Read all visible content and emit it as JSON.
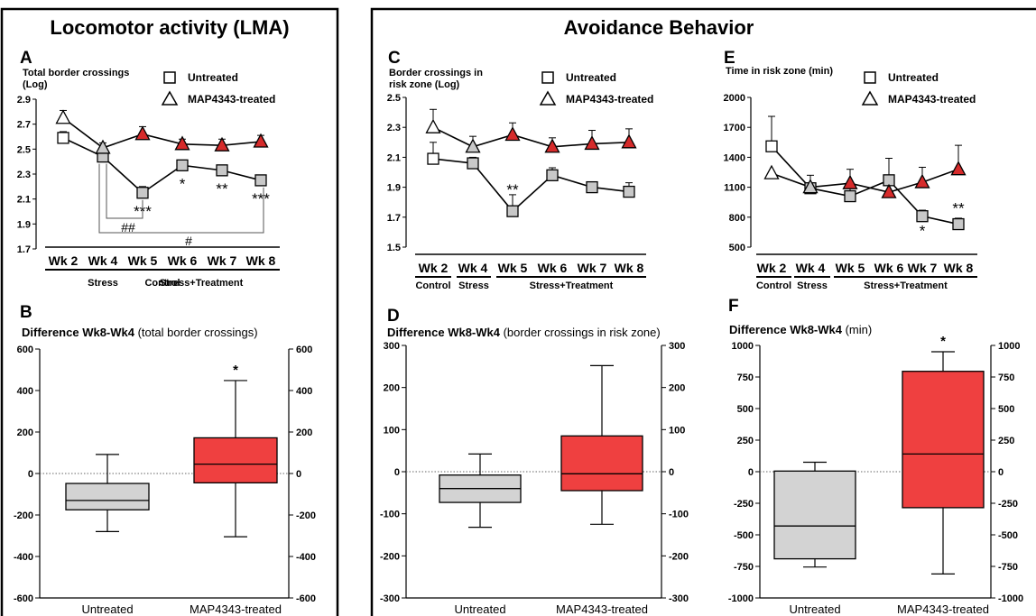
{
  "section_titles": {
    "lma": "Locomotor activity (LMA)",
    "avoid": "Avoidance Behavior"
  },
  "legend": {
    "untreated": "Untreated",
    "treated": "MAP4343-treated"
  },
  "x_axis": {
    "weeks": [
      "Wk 2",
      "Wk 4",
      "Wk 5",
      "Wk 6",
      "Wk 7",
      "Wk 8"
    ],
    "phases": [
      "Control",
      "Stress",
      "Stress+Treatment"
    ]
  },
  "colors": {
    "untreated_marker": "#c8c8c8",
    "treated_marker": "#d62b2b",
    "box_untreated": "#d3d3d3",
    "box_treated": "#ef4040"
  },
  "chart_data": [
    {
      "id": "A",
      "type": "line",
      "panel_label": "A",
      "ylabel": "Total border crossings\n(Log)",
      "ylim": [
        1.7,
        2.9
      ],
      "yticks": [
        "1.7",
        "1.9",
        "2.1",
        "2.3",
        "2.5",
        "2.7",
        "2.9"
      ],
      "categories": [
        "Wk 2",
        "Wk 4",
        "Wk 5",
        "Wk 6",
        "Wk 7",
        "Wk 8"
      ],
      "series": [
        {
          "name": "Untreated",
          "values": [
            2.59,
            2.44,
            2.15,
            2.37,
            2.33,
            2.25
          ],
          "errors": [
            0.05,
            0.03,
            0.05,
            0.03,
            0.02,
            0.02
          ]
        },
        {
          "name": "MAP4343-treated",
          "values": [
            2.75,
            2.51,
            2.62,
            2.54,
            2.53,
            2.56
          ],
          "errors": [
            0.06,
            0.04,
            0.06,
            0.04,
            0.05,
            0.05
          ]
        }
      ],
      "annotations": [
        {
          "category": "Wk 5",
          "text": "***"
        },
        {
          "category": "Wk 6",
          "text": "*"
        },
        {
          "category": "Wk 7",
          "text": "**"
        },
        {
          "category": "Wk 8",
          "text": "***"
        }
      ],
      "brackets": [
        {
          "from": "Wk 4",
          "to": "Wk 5",
          "text": "##"
        },
        {
          "from": "Wk 4",
          "to": "Wk 8",
          "text": "#"
        }
      ]
    },
    {
      "id": "C",
      "type": "line",
      "panel_label": "C",
      "ylabel": "Border crossings in\nrisk zone (Log)",
      "ylim": [
        1.5,
        2.5
      ],
      "yticks": [
        "1.5",
        "1.7",
        "1.9",
        "2.1",
        "2.3",
        "2.5"
      ],
      "categories": [
        "Wk 2",
        "Wk 4",
        "Wk 5",
        "Wk 6",
        "Wk 7",
        "Wk 8"
      ],
      "series": [
        {
          "name": "Untreated",
          "values": [
            2.09,
            2.06,
            1.74,
            1.98,
            1.9,
            1.87
          ],
          "errors": [
            0.11,
            0.04,
            0.11,
            0.05,
            0.03,
            0.06
          ]
        },
        {
          "name": "MAP4343-treated",
          "values": [
            2.3,
            2.17,
            2.25,
            2.17,
            2.19,
            2.2
          ],
          "errors": [
            0.12,
            0.07,
            0.08,
            0.06,
            0.09,
            0.09
          ]
        }
      ],
      "annotations": [
        {
          "category": "Wk 5",
          "text": "**"
        }
      ]
    },
    {
      "id": "E",
      "type": "line",
      "panel_label": "E",
      "ylabel": "Time in risk zone (min)",
      "ylim": [
        500,
        2000
      ],
      "yticks": [
        "500",
        "800",
        "1100",
        "1400",
        "1700",
        "2000"
      ],
      "categories": [
        "Wk 2",
        "Wk 4",
        "Wk 5",
        "Wk 6",
        "Wk 7",
        "Wk 8"
      ],
      "series": [
        {
          "name": "Untreated",
          "values": [
            1510,
            1090,
            1010,
            1170,
            810,
            730
          ],
          "errors": [
            300,
            130,
            80,
            220,
            60,
            60
          ]
        },
        {
          "name": "MAP4343-treated",
          "values": [
            1240,
            1100,
            1140,
            1050,
            1150,
            1280
          ],
          "errors": [
            0,
            0,
            140,
            0,
            150,
            240
          ]
        }
      ],
      "annotations": [
        {
          "category": "Wk 7",
          "text": "*",
          "position": "below"
        },
        {
          "category": "Wk 8",
          "text": "**"
        }
      ]
    },
    {
      "id": "B",
      "type": "box",
      "panel_label": "B",
      "title_bold": "Difference Wk8-Wk4",
      "title_rest": " (total border crossings)",
      "ylim": [
        -600,
        600
      ],
      "yticks": [
        "-600",
        "-400",
        "-200",
        "0",
        "200",
        "400",
        "600"
      ],
      "categories": [
        "Untreated",
        "MAP4343-treated"
      ],
      "boxes": [
        {
          "name": "Untreated",
          "min": -280,
          "q1": -175,
          "median": -130,
          "q3": -48,
          "max": 92
        },
        {
          "name": "MAP4343-treated",
          "min": -305,
          "q1": -45,
          "median": 45,
          "q3": 172,
          "max": 448
        }
      ],
      "annotations": [
        {
          "category": "MAP4343-treated",
          "text": "*"
        }
      ]
    },
    {
      "id": "D",
      "type": "box",
      "panel_label": "D",
      "title_bold": "Difference Wk8-Wk4",
      "title_rest": " (border crossings in risk zone)",
      "ylim": [
        -300,
        300
      ],
      "yticks": [
        "-300",
        "-200",
        "-100",
        "0",
        "100",
        "200",
        "300"
      ],
      "categories": [
        "Untreated",
        "MAP4343-treated"
      ],
      "boxes": [
        {
          "name": "Untreated",
          "min": -132,
          "q1": -73,
          "median": -40,
          "q3": -8,
          "max": 42
        },
        {
          "name": "MAP4343-treated",
          "min": -125,
          "q1": -45,
          "median": -5,
          "q3": 85,
          "max": 252
        }
      ],
      "annotations": []
    },
    {
      "id": "F",
      "type": "box",
      "panel_label": "F",
      "title_bold": "Difference Wk8-Wk4",
      "title_rest": " (min)",
      "ylim": [
        -1000,
        1000
      ],
      "yticks": [
        "-1000",
        "-750",
        "-500",
        "-250",
        "0",
        "250",
        "500",
        "750",
        "1000"
      ],
      "categories": [
        "Untreated",
        "MAP4343-treated"
      ],
      "boxes": [
        {
          "name": "Untreated",
          "min": -755,
          "q1": -690,
          "median": -430,
          "q3": 5,
          "max": 75
        },
        {
          "name": "MAP4343-treated",
          "min": -810,
          "q1": -285,
          "median": 140,
          "q3": 795,
          "max": 950
        }
      ],
      "annotations": [
        {
          "category": "MAP4343-treated",
          "text": "*"
        }
      ]
    }
  ]
}
